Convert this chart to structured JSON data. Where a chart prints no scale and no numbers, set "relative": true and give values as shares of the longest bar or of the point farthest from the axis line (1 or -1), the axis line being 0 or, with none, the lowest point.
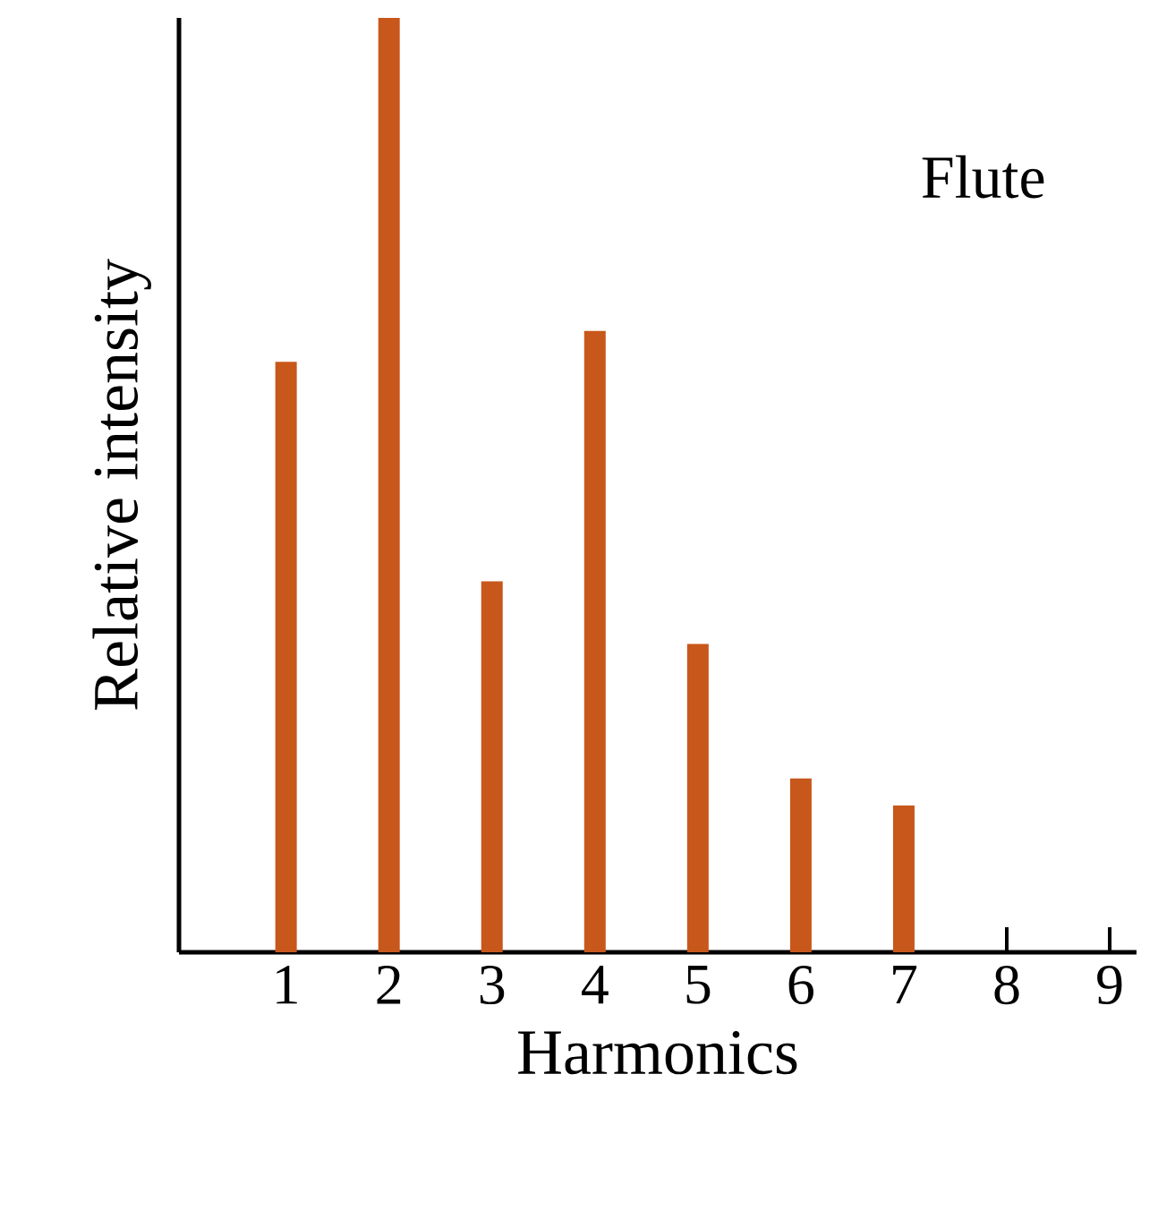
{
  "chart_data": {
    "type": "bar",
    "relative": true,
    "categories": [
      "1",
      "2",
      "3",
      "4",
      "5",
      "6",
      "7",
      "8",
      "9"
    ],
    "values": [
      0.632,
      1,
      0.397,
      0.665,
      0.33,
      0.186,
      0.157,
      0,
      0
    ],
    "color": "#c8571b",
    "xlabel": "Harmonics",
    "ylabel": "Relative intensity",
    "annotations": [
      "Flute"
    ]
  }
}
